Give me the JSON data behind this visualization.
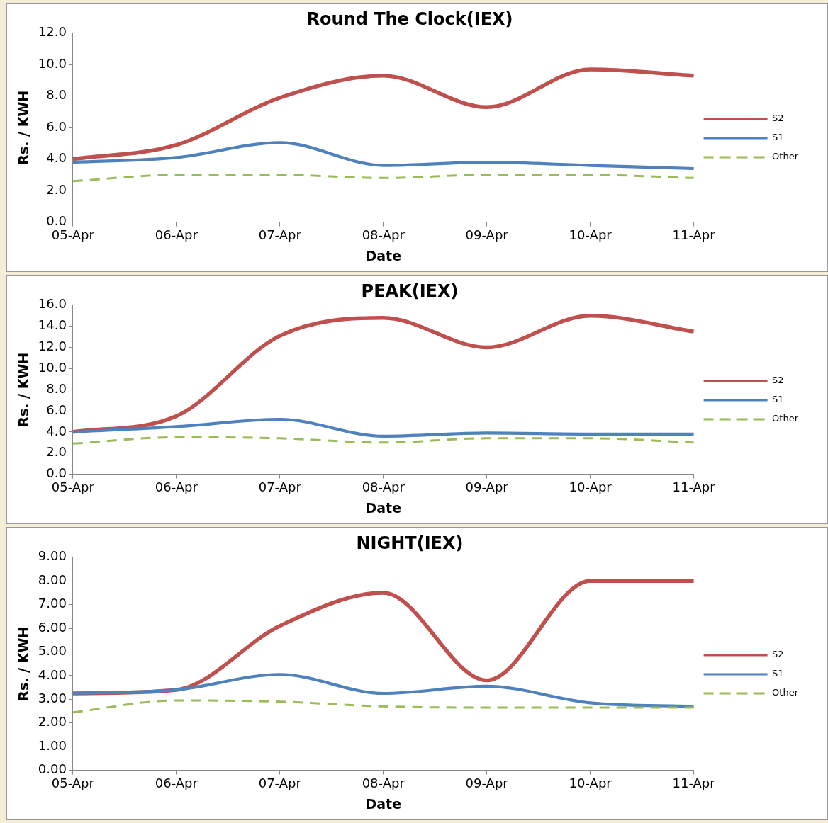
{
  "chart_data": [
    {
      "type": "line",
      "title": "Round The Clock(IEX)",
      "xlabel": "Date",
      "ylabel": "Rs. / KWH",
      "categories": [
        "05-Apr",
        "06-Apr",
        "07-Apr",
        "08-Apr",
        "09-Apr",
        "10-Apr",
        "11-Apr"
      ],
      "series": [
        {
          "name": "S2",
          "color": "#c0504d",
          "values": [
            4.0,
            4.9,
            7.9,
            9.3,
            7.3,
            9.7,
            9.3
          ]
        },
        {
          "name": "S1",
          "color": "#4f81bd",
          "values": [
            3.8,
            4.1,
            5.05,
            3.6,
            3.8,
            3.6,
            3.4
          ]
        },
        {
          "name": "Other",
          "color": "#9bbb59",
          "line_style": "dashed",
          "values": [
            2.6,
            3.0,
            3.0,
            2.8,
            3.0,
            3.0,
            2.8
          ]
        }
      ],
      "ylim": [
        0,
        12
      ],
      "yticks": [
        {
          "value": 0,
          "label": "0.0"
        },
        {
          "value": 2,
          "label": "2.0"
        },
        {
          "value": 4,
          "label": "4.0"
        },
        {
          "value": 6,
          "label": "6.0"
        },
        {
          "value": 8,
          "label": "8.0"
        },
        {
          "value": 10,
          "label": "10.0"
        },
        {
          "value": 12,
          "label": "12.0"
        }
      ],
      "grid": false,
      "legend": "right",
      "marker": "none"
    },
    {
      "type": "line",
      "title": "PEAK(IEX)",
      "xlabel": "Date",
      "ylabel": "Rs. / KWH",
      "categories": [
        "05-Apr",
        "06-Apr",
        "07-Apr",
        "08-Apr",
        "09-Apr",
        "10-Apr",
        "11-Apr"
      ],
      "series": [
        {
          "name": "S2",
          "color": "#c0504d",
          "values": [
            4.0,
            5.5,
            13.1,
            14.8,
            12.0,
            15.0,
            13.5
          ]
        },
        {
          "name": "S1",
          "color": "#4f81bd",
          "values": [
            4.0,
            4.5,
            5.2,
            3.6,
            3.9,
            3.8,
            3.8
          ]
        },
        {
          "name": "Other",
          "color": "#9bbb59",
          "line_style": "dashed",
          "values": [
            2.9,
            3.5,
            3.4,
            3.0,
            3.4,
            3.4,
            3.0
          ]
        }
      ],
      "ylim": [
        0,
        16
      ],
      "yticks": [
        {
          "value": 0,
          "label": "0.0"
        },
        {
          "value": 2,
          "label": "2.0"
        },
        {
          "value": 4,
          "label": "4.0"
        },
        {
          "value": 6,
          "label": "6.0"
        },
        {
          "value": 8,
          "label": "8.0"
        },
        {
          "value": 10,
          "label": "10.0"
        },
        {
          "value": 12,
          "label": "12.0"
        },
        {
          "value": 14,
          "label": "14.0"
        },
        {
          "value": 16,
          "label": "16.0"
        }
      ],
      "grid": false,
      "legend": "right",
      "marker": "none"
    },
    {
      "type": "line",
      "title": "NIGHT(IEX)",
      "xlabel": "Date",
      "ylabel": "Rs. / KWH",
      "categories": [
        "05-Apr",
        "06-Apr",
        "07-Apr",
        "08-Apr",
        "09-Apr",
        "10-Apr",
        "11-Apr"
      ],
      "series": [
        {
          "name": "S2",
          "color": "#c0504d",
          "values": [
            3.25,
            3.4,
            6.1,
            7.5,
            3.8,
            8.0,
            8.0
          ]
        },
        {
          "name": "S1",
          "color": "#4f81bd",
          "values": [
            3.25,
            3.4,
            4.05,
            3.25,
            3.55,
            2.85,
            2.7
          ]
        },
        {
          "name": "Other",
          "color": "#9bbb59",
          "line_style": "dashed",
          "values": [
            2.45,
            2.95,
            2.9,
            2.7,
            2.65,
            2.65,
            2.65
          ]
        }
      ],
      "ylim": [
        0,
        9
      ],
      "yticks": [
        {
          "value": 0,
          "label": "0.00"
        },
        {
          "value": 1,
          "label": "1.00"
        },
        {
          "value": 2,
          "label": "2.00"
        },
        {
          "value": 3,
          "label": "3.00"
        },
        {
          "value": 4,
          "label": "4.00"
        },
        {
          "value": 5,
          "label": "5.00"
        },
        {
          "value": 6,
          "label": "6.00"
        },
        {
          "value": 7,
          "label": "7.00"
        },
        {
          "value": 8,
          "label": "8.00"
        },
        {
          "value": 9,
          "label": "9.00"
        }
      ],
      "grid": false,
      "legend": "right",
      "marker": "none"
    }
  ]
}
